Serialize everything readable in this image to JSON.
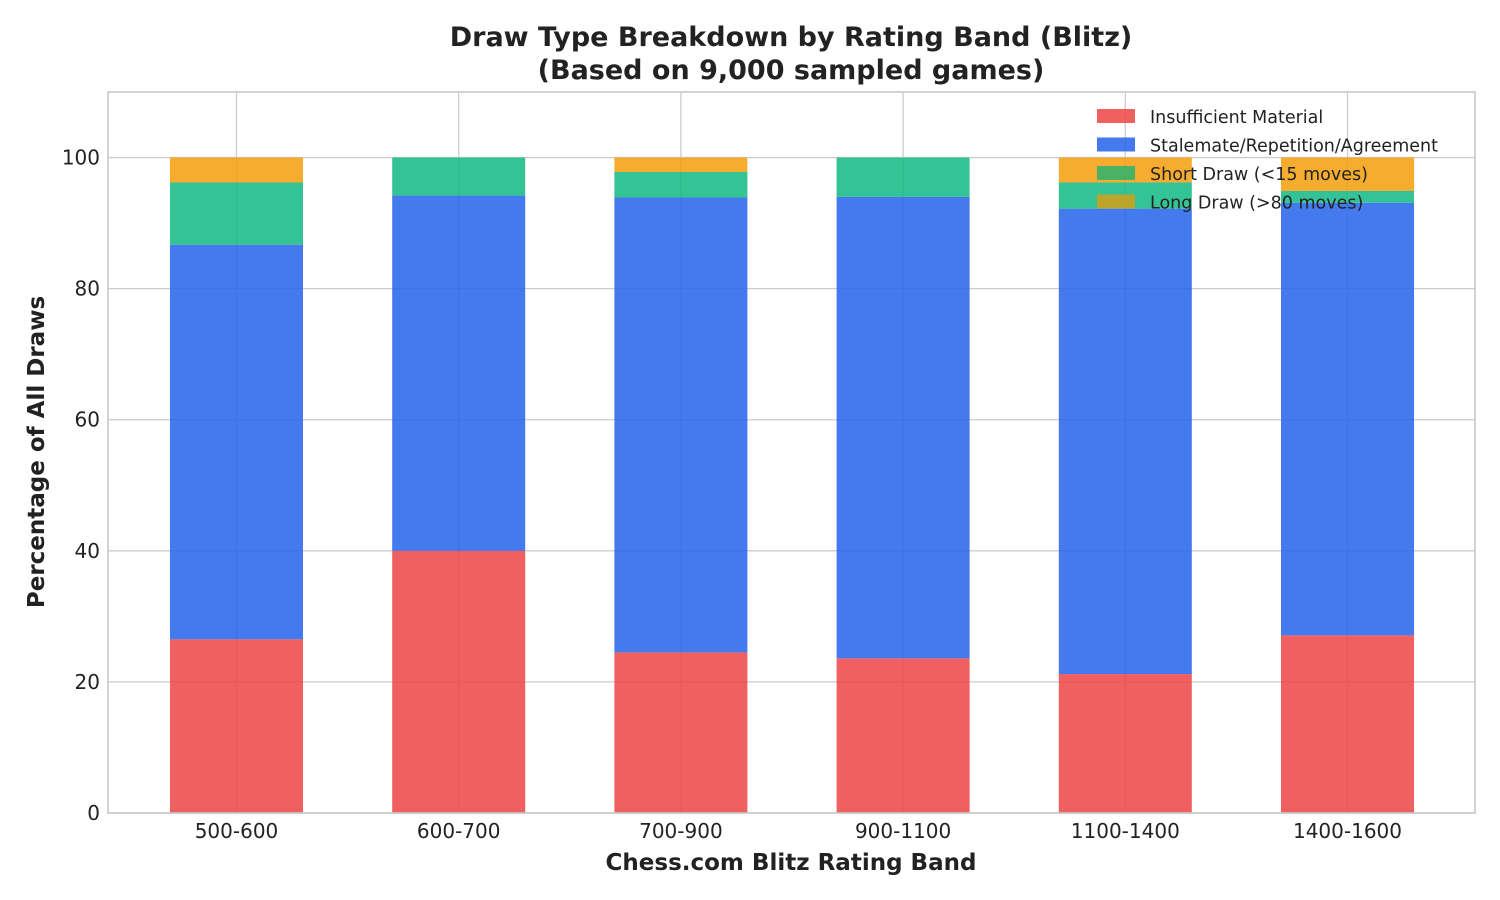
{
  "chart_data": {
    "type": "bar",
    "stacked": true,
    "title": "Draw Type Breakdown by Rating Band (Blitz)",
    "subtitle": "(Based on 9,000 sampled games)",
    "xlabel": "Chess.com Blitz Rating Band",
    "ylabel": "Percentage of All Draws",
    "ylim": [
      0,
      110
    ],
    "yticks": [
      0,
      20,
      40,
      60,
      80,
      100
    ],
    "grid": true,
    "legend_position": "top-right",
    "categories": [
      "500-600",
      "600-700",
      "700-900",
      "900-1100",
      "1100-1400",
      "1400-1600"
    ],
    "series": [
      {
        "name": "Insufficient Material",
        "color": "#ef4444",
        "values": [
          26.5,
          40.0,
          24.5,
          23.6,
          21.2,
          27.1
        ]
      },
      {
        "name": "Stalemate/Repetition/Agreement",
        "color": "#2563eb",
        "values": [
          60.2,
          54.2,
          69.4,
          70.4,
          71.0,
          66.0
        ]
      },
      {
        "name": "Short Draw (<15 moves)",
        "color": "#10b981",
        "values": [
          9.5,
          5.8,
          3.9,
          6.0,
          4.0,
          1.8
        ]
      },
      {
        "name": "Long Draw (>80 moves)",
        "color": "#f59e0b",
        "values": [
          3.8,
          0.0,
          2.2,
          0.0,
          3.8,
          5.1
        ]
      }
    ],
    "legend_colors": [
      "#ef4444",
      "#2563eb",
      "#2db36f",
      "#d4a017"
    ]
  }
}
